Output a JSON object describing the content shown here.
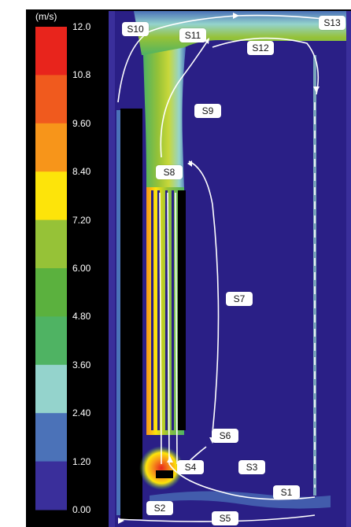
{
  "legend": {
    "unit": "(m/s)",
    "ticks": [
      "12.0",
      "10.8",
      "9.60",
      "8.40",
      "7.20",
      "6.00",
      "4.80",
      "3.60",
      "2.40",
      "1.20",
      "0.00"
    ],
    "colors": [
      "#e8241c",
      "#f05a1e",
      "#f7951a",
      "#fde40a",
      "#96c237",
      "#5bb13e",
      "#4fb363",
      "#94d3cc",
      "#4b72b8",
      "#3a2f9b"
    ]
  },
  "streamlines": {
    "S1": "S1",
    "S2": "S2",
    "S3": "S3",
    "S4": "S4",
    "S5": "S5",
    "S6": "S6",
    "S7": "S7",
    "S8": "S8",
    "S9": "S9",
    "S10": "S10",
    "S11": "S11",
    "S12": "S12",
    "S13": "S13"
  },
  "colors": {
    "background": "#2a1f86",
    "frame": "#000000",
    "label_bg": "#ffffff"
  }
}
